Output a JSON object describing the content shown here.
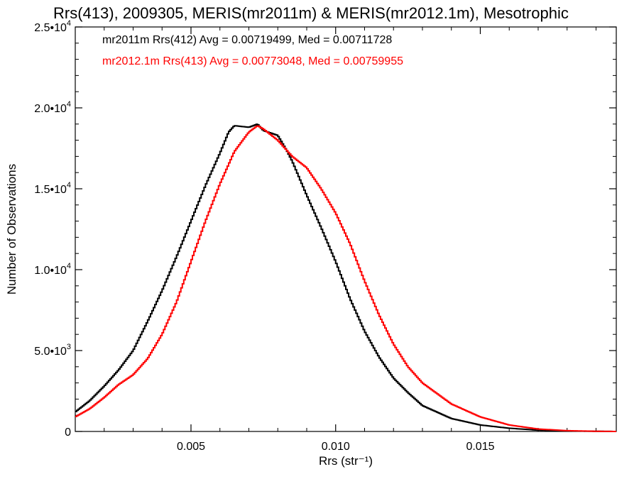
{
  "chart_data": {
    "type": "line",
    "title": "Rrs(413), 2009305, MERIS(mr2011m) & MERIS(mr2012.1m), Mesotrophic",
    "xlabel": "Rrs (str⁻¹)",
    "ylabel": "Number of Observations",
    "xlim": [
      0.001,
      0.0197
    ],
    "ylim": [
      0,
      25000
    ],
    "x_ticks": [
      {
        "value": 0.005,
        "label": "0.005"
      },
      {
        "value": 0.01,
        "label": "0.010"
      },
      {
        "value": 0.015,
        "label": "0.015"
      }
    ],
    "y_ticks": [
      {
        "value": 0,
        "mant": "0",
        "exp": ""
      },
      {
        "value": 5000,
        "mant": "5.0•10",
        "exp": "3"
      },
      {
        "value": 10000,
        "mant": "1.0•10",
        "exp": "4"
      },
      {
        "value": 15000,
        "mant": "1.5•10",
        "exp": "4"
      },
      {
        "value": 20000,
        "mant": "2.0•10",
        "exp": "4"
      },
      {
        "value": 25000,
        "mant": "2.5•10",
        "exp": "4"
      }
    ],
    "legend": [
      "mr2011m Rrs(412) Avg = 0.00719499, Med = 0.00711728",
      "mr2012.1m Rrs(413) Avg = 0.00773048, Med = 0.00759955"
    ],
    "series": [
      {
        "color": "#000000",
        "points": [
          [
            0.001,
            1200
          ],
          [
            0.0015,
            1900
          ],
          [
            0.002,
            2800
          ],
          [
            0.0025,
            3800
          ],
          [
            0.003,
            5000
          ],
          [
            0.0035,
            6800
          ],
          [
            0.004,
            8700
          ],
          [
            0.0045,
            10800
          ],
          [
            0.005,
            13000
          ],
          [
            0.0055,
            15200
          ],
          [
            0.006,
            17200
          ],
          [
            0.0063,
            18500
          ],
          [
            0.0065,
            18900
          ],
          [
            0.007,
            18800
          ],
          [
            0.0073,
            19000
          ],
          [
            0.0075,
            18600
          ],
          [
            0.008,
            18300
          ],
          [
            0.0083,
            17400
          ],
          [
            0.0085,
            16700
          ],
          [
            0.009,
            14600
          ],
          [
            0.0095,
            12600
          ],
          [
            0.01,
            10500
          ],
          [
            0.0105,
            8200
          ],
          [
            0.011,
            6200
          ],
          [
            0.0115,
            4600
          ],
          [
            0.012,
            3300
          ],
          [
            0.0125,
            2400
          ],
          [
            0.013,
            1600
          ],
          [
            0.014,
            800
          ],
          [
            0.015,
            400
          ],
          [
            0.016,
            200
          ],
          [
            0.017,
            80
          ],
          [
            0.018,
            30
          ],
          [
            0.0197,
            0
          ]
        ]
      },
      {
        "color": "#ff0000",
        "points": [
          [
            0.001,
            900
          ],
          [
            0.0015,
            1400
          ],
          [
            0.002,
            2100
          ],
          [
            0.0025,
            2900
          ],
          [
            0.003,
            3500
          ],
          [
            0.0035,
            4500
          ],
          [
            0.004,
            6000
          ],
          [
            0.0045,
            8000
          ],
          [
            0.005,
            10500
          ],
          [
            0.0055,
            13000
          ],
          [
            0.006,
            15300
          ],
          [
            0.0065,
            17300
          ],
          [
            0.007,
            18500
          ],
          [
            0.0073,
            18900
          ],
          [
            0.0075,
            18700
          ],
          [
            0.008,
            18000
          ],
          [
            0.0085,
            17000
          ],
          [
            0.009,
            16300
          ],
          [
            0.0095,
            15000
          ],
          [
            0.01,
            13500
          ],
          [
            0.0105,
            11600
          ],
          [
            0.011,
            9300
          ],
          [
            0.0115,
            7200
          ],
          [
            0.012,
            5400
          ],
          [
            0.0125,
            4000
          ],
          [
            0.013,
            3000
          ],
          [
            0.014,
            1700
          ],
          [
            0.015,
            900
          ],
          [
            0.016,
            400
          ],
          [
            0.017,
            150
          ],
          [
            0.018,
            50
          ],
          [
            0.019,
            10
          ],
          [
            0.0197,
            0
          ]
        ]
      }
    ]
  }
}
